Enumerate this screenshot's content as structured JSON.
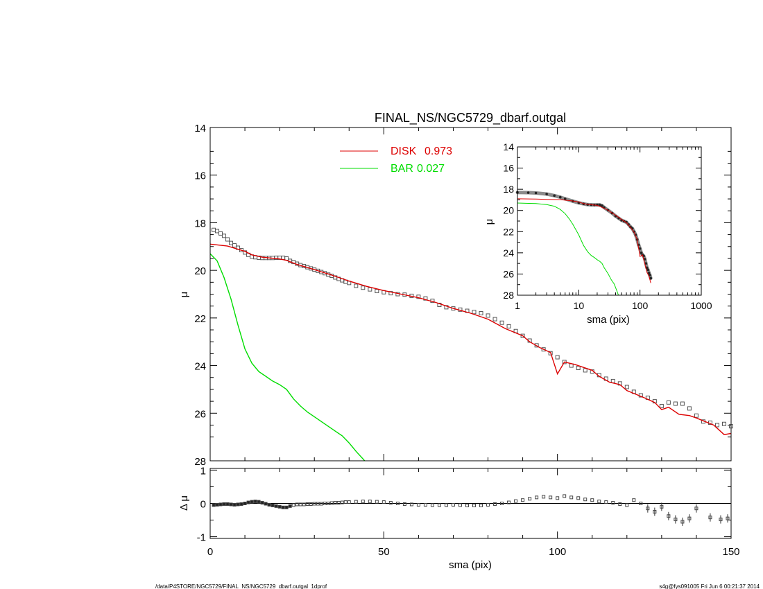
{
  "chart_data": [
    {
      "type": "line",
      "title": "FINAL_NS/NGC5729_dbarf.outgal",
      "xlabel": "",
      "ylabel": "μ",
      "xlim": [
        0,
        150
      ],
      "ylim": [
        28,
        14
      ],
      "y_inverted": true,
      "yticks": [
        14,
        16,
        18,
        20,
        22,
        24,
        26,
        28
      ],
      "legend": {
        "placement": "top-center",
        "entries": [
          {
            "name": "DISK",
            "value": "0.973",
            "color": "#dd0000"
          },
          {
            "name": "BAR",
            "value": "0.027",
            "color": "#00dd00"
          }
        ]
      },
      "series": [
        {
          "name": "data",
          "style": "squares",
          "color": "#555555",
          "x": [
            1,
            2,
            3,
            4,
            5,
            6,
            7,
            8,
            9,
            10,
            11,
            12,
            13,
            14,
            15,
            16,
            17,
            18,
            19,
            20,
            21,
            22,
            23,
            24,
            25,
            26,
            27,
            28,
            29,
            30,
            31,
            32,
            33,
            34,
            35,
            36,
            37,
            38,
            39,
            40,
            42,
            44,
            46,
            48,
            50,
            52,
            54,
            56,
            58,
            60,
            62,
            64,
            66,
            68,
            70,
            72,
            74,
            76,
            78,
            80,
            82,
            84,
            86,
            88,
            90,
            92,
            94,
            96,
            98,
            100,
            102,
            104,
            106,
            108,
            110,
            112,
            114,
            116,
            118,
            120,
            122,
            124,
            126,
            128,
            130,
            132,
            134,
            136,
            138,
            140,
            142,
            144,
            146,
            148,
            150
          ],
          "y": [
            18.3,
            18.35,
            18.45,
            18.55,
            18.7,
            18.85,
            18.95,
            19.05,
            19.15,
            19.25,
            19.35,
            19.42,
            19.45,
            19.47,
            19.48,
            19.48,
            19.48,
            19.48,
            19.47,
            19.47,
            19.47,
            19.5,
            19.6,
            19.65,
            19.72,
            19.78,
            19.82,
            19.87,
            19.92,
            19.97,
            20.02,
            20.07,
            20.12,
            20.18,
            20.23,
            20.3,
            20.36,
            20.42,
            20.48,
            20.53,
            20.65,
            20.73,
            20.8,
            20.87,
            20.92,
            20.96,
            21.0,
            21.02,
            21.07,
            21.11,
            21.18,
            21.28,
            21.45,
            21.55,
            21.6,
            21.65,
            21.7,
            21.75,
            21.8,
            21.9,
            22.05,
            22.2,
            22.35,
            22.55,
            22.75,
            22.95,
            23.15,
            23.32,
            23.48,
            23.65,
            23.85,
            24.0,
            24.1,
            24.2,
            24.25,
            24.4,
            24.55,
            24.65,
            24.75,
            24.9,
            25.1,
            25.25,
            25.35,
            25.5,
            25.7,
            25.55,
            25.6,
            25.6,
            25.8,
            26.1,
            26.35,
            26.4,
            26.5,
            26.45,
            26.55
          ]
        },
        {
          "name": "DISK",
          "style": "line",
          "color": "#dd0000",
          "x": [
            0,
            5,
            10,
            12,
            15,
            20,
            22,
            25,
            30,
            35,
            40,
            45,
            50,
            55,
            60,
            65,
            70,
            75,
            80,
            85,
            90,
            92,
            95,
            98,
            100,
            102,
            105,
            110,
            112,
            115,
            118,
            120,
            125,
            128,
            130,
            132,
            135,
            138,
            140,
            145,
            148,
            150
          ],
          "y": [
            18.9,
            18.98,
            19.2,
            19.35,
            19.45,
            19.52,
            19.58,
            19.75,
            19.97,
            20.2,
            20.45,
            20.67,
            20.85,
            21.0,
            21.15,
            21.35,
            21.6,
            21.8,
            22.05,
            22.45,
            22.75,
            23.0,
            23.25,
            23.45,
            24.35,
            23.85,
            23.95,
            24.2,
            24.45,
            24.7,
            24.8,
            25.05,
            25.35,
            25.55,
            25.85,
            25.75,
            26.05,
            26.1,
            26.2,
            26.5,
            26.9,
            26.85
          ]
        },
        {
          "name": "BAR",
          "style": "line",
          "color": "#00dd00",
          "x": [
            0,
            2,
            4,
            6,
            8,
            10,
            12,
            14,
            16,
            18,
            20,
            22,
            24,
            26,
            28,
            30,
            32,
            34,
            36,
            38,
            40,
            42,
            44.5
          ],
          "y": [
            19.3,
            19.6,
            20.3,
            21.2,
            22.3,
            23.3,
            23.9,
            24.25,
            24.45,
            24.65,
            24.8,
            25.0,
            25.4,
            25.7,
            25.95,
            26.15,
            26.35,
            26.55,
            26.75,
            26.95,
            27.25,
            27.6,
            28.0
          ]
        }
      ]
    },
    {
      "type": "scatter",
      "title": "",
      "xlabel": "sma (pix)",
      "ylabel": "Δ μ",
      "xlim": [
        0,
        150
      ],
      "ylim": [
        -1.05,
        1.05
      ],
      "yticks": [
        1,
        0,
        -1
      ],
      "xticks": [
        0,
        50,
        100,
        150
      ],
      "zero_line": true,
      "series": [
        {
          "name": "residual",
          "style": "squares",
          "color": "#555555",
          "x": [
            1,
            2,
            3,
            4,
            5,
            6,
            7,
            8,
            9,
            10,
            11,
            12,
            13,
            14,
            15,
            16,
            17,
            18,
            19,
            20,
            21,
            22,
            23,
            24,
            25,
            26,
            27,
            28,
            29,
            30,
            31,
            32,
            33,
            34,
            35,
            36,
            37,
            38,
            39,
            40,
            42,
            44,
            46,
            48,
            50,
            52,
            54,
            56,
            58,
            60,
            62,
            64,
            66,
            68,
            70,
            72,
            74,
            76,
            78,
            80,
            82,
            84,
            86,
            88,
            90,
            92,
            94,
            96,
            98,
            100,
            102,
            104,
            106,
            108,
            110,
            112,
            114,
            116,
            118,
            120,
            122,
            124,
            126,
            128,
            130,
            132,
            134,
            136,
            138,
            140,
            144,
            147,
            149
          ],
          "y": [
            -0.05,
            -0.04,
            -0.03,
            -0.02,
            -0.02,
            -0.03,
            -0.04,
            -0.03,
            -0.02,
            0.0,
            0.03,
            0.05,
            0.06,
            0.05,
            0.02,
            -0.01,
            -0.04,
            -0.06,
            -0.08,
            -0.1,
            -0.12,
            -0.12,
            -0.08,
            -0.05,
            -0.03,
            -0.03,
            -0.03,
            -0.02,
            -0.02,
            -0.01,
            -0.01,
            -0.01,
            0.0,
            0.0,
            0.01,
            0.02,
            0.02,
            0.03,
            0.04,
            0.04,
            0.05,
            0.06,
            0.06,
            0.05,
            0.04,
            0.02,
            0.0,
            -0.02,
            -0.03,
            -0.04,
            -0.04,
            -0.05,
            -0.05,
            -0.05,
            -0.04,
            -0.05,
            -0.06,
            -0.06,
            -0.06,
            -0.04,
            -0.02,
            0.0,
            0.03,
            0.07,
            0.1,
            0.14,
            0.18,
            0.2,
            0.18,
            0.16,
            0.22,
            0.18,
            0.16,
            0.12,
            0.1,
            0.06,
            0.04,
            0.02,
            -0.02,
            -0.05,
            0.1,
            0.0,
            -0.15,
            -0.25,
            -0.1,
            -0.38,
            -0.48,
            -0.55,
            -0.45,
            -0.15,
            -0.42,
            -0.48,
            -0.45
          ]
        }
      ]
    },
    {
      "type": "line",
      "title": "",
      "xlabel": "sma (pix)",
      "ylabel": "μ",
      "x_scale": "log",
      "xlim": [
        1,
        1000
      ],
      "ylim": [
        28,
        14
      ],
      "y_inverted": true,
      "xticks": [
        1,
        10,
        100,
        1000
      ],
      "yticks": [
        14,
        16,
        18,
        20,
        22,
        24,
        26,
        28
      ],
      "placement": "inset-top-right",
      "series": [
        {
          "name": "data",
          "style": "thick-dots",
          "color": "#444444",
          "x": [
            1,
            1.5,
            2,
            3,
            4,
            5,
            6,
            8,
            10,
            12,
            14,
            16,
            18,
            20,
            22,
            24,
            26,
            30,
            35,
            40,
            45,
            50,
            55,
            60,
            65,
            70,
            75,
            80,
            85,
            90,
            95,
            100,
            105,
            110,
            115,
            120,
            125,
            130,
            135,
            140,
            145,
            150
          ],
          "y": [
            18.3,
            18.32,
            18.35,
            18.45,
            18.6,
            18.75,
            18.9,
            19.12,
            19.28,
            19.38,
            19.45,
            19.47,
            19.48,
            19.47,
            19.47,
            19.55,
            19.72,
            19.97,
            20.25,
            20.53,
            20.73,
            20.92,
            21.02,
            21.11,
            21.32,
            21.55,
            21.7,
            22.0,
            22.3,
            22.75,
            23.25,
            23.6,
            24.0,
            24.2,
            24.3,
            24.6,
            25.0,
            25.4,
            25.6,
            25.9,
            26.1,
            26.4
          ]
        },
        {
          "name": "DISK",
          "style": "line",
          "color": "#dd0000",
          "x": [
            1,
            2,
            3,
            5,
            8,
            10,
            12,
            15,
            20,
            25,
            30,
            40,
            50,
            60,
            70,
            80,
            90,
            100,
            110,
            120,
            130,
            140,
            150
          ],
          "y": [
            18.9,
            18.92,
            18.95,
            18.98,
            19.1,
            19.2,
            19.35,
            19.45,
            19.52,
            19.75,
            19.97,
            20.45,
            20.85,
            21.15,
            21.6,
            22.05,
            22.75,
            24.35,
            24.2,
            25.05,
            25.85,
            26.2,
            26.85
          ]
        },
        {
          "name": "BAR",
          "style": "line",
          "color": "#00dd00",
          "x": [
            1,
            2,
            3,
            4,
            5,
            6,
            7,
            8,
            10,
            12,
            14,
            16,
            18,
            20,
            22,
            24,
            26,
            30,
            34,
            38,
            42,
            44.5
          ],
          "y": [
            19.3,
            19.35,
            19.45,
            19.6,
            19.9,
            20.3,
            20.8,
            21.3,
            22.3,
            23.3,
            23.9,
            24.25,
            24.45,
            24.65,
            24.8,
            25.0,
            25.4,
            25.95,
            26.55,
            26.95,
            27.6,
            28.0
          ]
        }
      ]
    }
  ],
  "footer": {
    "left": "/data/P4STORE/NGC5729/FINAL_NS/NGC5729_dbarf.outgal_1dprof",
    "right": "s4g@fys091005  Fri Jun  6 00:21:37 2014"
  }
}
